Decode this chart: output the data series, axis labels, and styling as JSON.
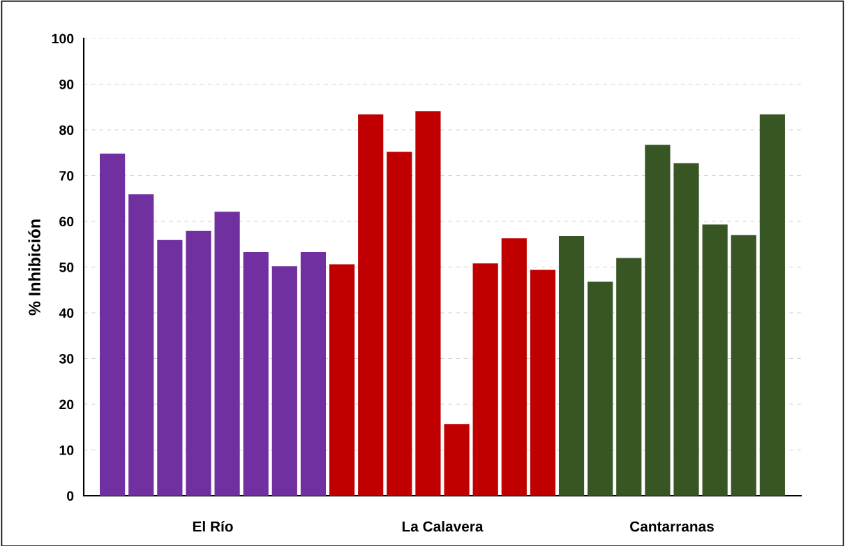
{
  "chart_data": {
    "type": "bar",
    "ylabel": "% Inhibición",
    "categories": [
      null,
      null,
      null,
      null,
      null,
      null,
      null,
      null,
      null,
      null,
      null,
      null,
      null,
      null,
      null,
      null,
      null,
      null,
      null,
      null,
      null,
      null,
      null,
      null
    ],
    "series": [
      {
        "name": "El Río",
        "color": "#7030a0",
        "values": [
          74.8,
          65.9,
          55.9,
          57.9,
          62.1,
          53.3,
          50.2,
          53.3,
          null,
          null,
          null,
          null,
          null,
          null,
          null,
          null,
          null,
          null,
          null,
          null,
          null,
          null,
          null,
          null
        ]
      },
      {
        "name": "La Calavera",
        "color": "#c00000",
        "values": [
          null,
          null,
          null,
          null,
          null,
          null,
          null,
          null,
          50.6,
          83.4,
          75.2,
          84.1,
          15.7,
          50.8,
          56.3,
          49.4,
          null,
          null,
          null,
          null,
          null,
          null,
          null,
          null
        ]
      },
      {
        "name": "Cantarranas",
        "color": "#375623",
        "values": [
          null,
          null,
          null,
          null,
          null,
          null,
          null,
          null,
          null,
          null,
          null,
          null,
          null,
          null,
          null,
          null,
          56.8,
          46.8,
          52.0,
          76.7,
          72.7,
          59.3,
          57.0,
          83.4
        ]
      }
    ],
    "ylim": [
      0,
      100
    ],
    "yticks": [
      0,
      10,
      20,
      30,
      40,
      50,
      60,
      70,
      80,
      90,
      100
    ],
    "grid": "y"
  }
}
